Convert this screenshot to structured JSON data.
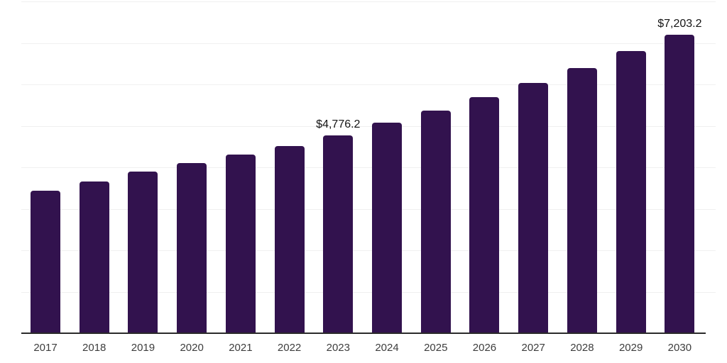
{
  "chart_data": {
    "type": "bar",
    "title": "",
    "xlabel": "",
    "ylabel": "",
    "categories": [
      "2017",
      "2018",
      "2019",
      "2020",
      "2021",
      "2022",
      "2023",
      "2024",
      "2025",
      "2026",
      "2027",
      "2028",
      "2029",
      "2030"
    ],
    "values": [
      3435,
      3665,
      3890,
      4100,
      4305,
      4520,
      4776.2,
      5070,
      5370,
      5690,
      6040,
      6400,
      6800,
      7203.2
    ],
    "data_labels": [
      {
        "category": "2023",
        "text": "$4,776.2"
      },
      {
        "category": "2030",
        "text": "$7,203.2"
      }
    ],
    "ylim": [
      0,
      8000
    ],
    "gridline_step": 1000,
    "grid": true,
    "legend": false,
    "y_tick_labels_visible": false,
    "colors": {
      "bar": "#32124E",
      "gridline": "#f0f0f0",
      "axis_line": "#2b2b2b",
      "tick_label": "#3d3d3d",
      "data_label": "#141414",
      "background": "#ffffff"
    }
  }
}
